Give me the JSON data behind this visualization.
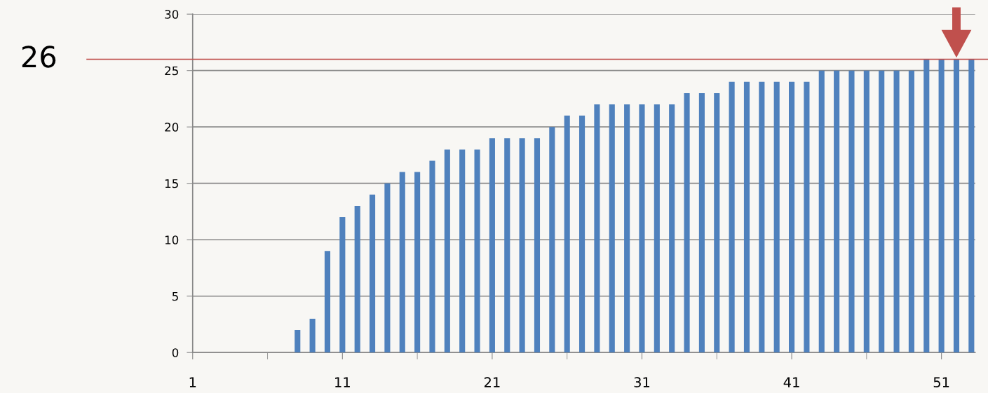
{
  "chart_data": {
    "type": "bar",
    "categories": [
      "1",
      null,
      null,
      null,
      null,
      null,
      null,
      null,
      null,
      null,
      "11",
      null,
      null,
      null,
      null,
      null,
      null,
      null,
      null,
      null,
      "21",
      null,
      null,
      null,
      null,
      null,
      null,
      null,
      null,
      null,
      "31",
      null,
      null,
      null,
      null,
      null,
      null,
      null,
      null,
      null,
      "41",
      null,
      null,
      null,
      null,
      null,
      null,
      null,
      null,
      null,
      "51",
      null,
      null
    ],
    "values": [
      null,
      null,
      null,
      null,
      null,
      null,
      null,
      2,
      3,
      9,
      12,
      13,
      14,
      15,
      16,
      16,
      17,
      18,
      18,
      18,
      19,
      19,
      19,
      19,
      20,
      21,
      21,
      22,
      22,
      22,
      22,
      22,
      22,
      23,
      23,
      23,
      24,
      24,
      24,
      24,
      24,
      24,
      25,
      25,
      25,
      25,
      25,
      25,
      25,
      26,
      26,
      26,
      26
    ],
    "color": "#4f81bd",
    "ylim": [
      0,
      30
    ],
    "yticks": [
      0,
      5,
      10,
      15,
      20,
      25,
      30
    ],
    "grid": "y",
    "ref_lines": [
      {
        "axis": "y",
        "value": 26,
        "label": "26",
        "color": "#c0504d"
      }
    ]
  }
}
